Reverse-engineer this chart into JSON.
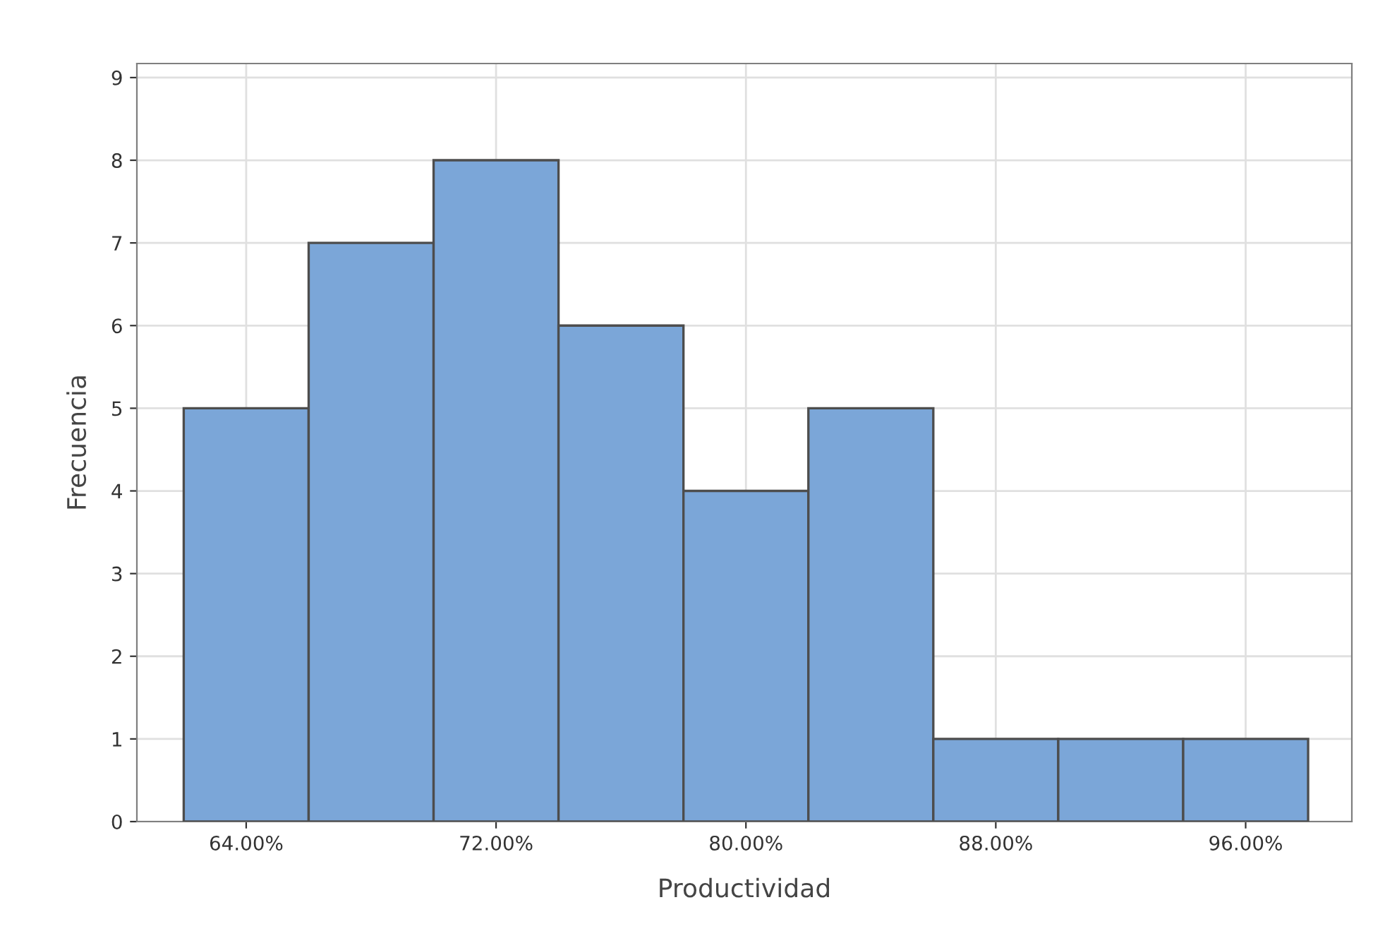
{
  "chart_data": {
    "type": "histogram",
    "xlabel": "Productividad",
    "ylabel": "Frecuencia",
    "bins": [
      62,
      66,
      70,
      74,
      78,
      82,
      86,
      90,
      94,
      98
    ],
    "values": [
      5,
      7,
      8,
      6,
      4,
      5,
      1,
      1,
      1
    ],
    "color": "#7ba6d8",
    "xlim": [
      60.5,
      99.4
    ],
    "ylim": [
      0,
      9.17
    ],
    "xticks": [
      {
        "value": 64,
        "label": "64.00%"
      },
      {
        "value": 72,
        "label": "72.00%"
      },
      {
        "value": 80,
        "label": "80.00%"
      },
      {
        "value": 88,
        "label": "88.00%"
      },
      {
        "value": 96,
        "label": "96.00%"
      }
    ],
    "yticks": [
      0,
      1,
      2,
      3,
      4,
      5,
      6,
      7,
      8,
      9
    ],
    "grid": true
  }
}
